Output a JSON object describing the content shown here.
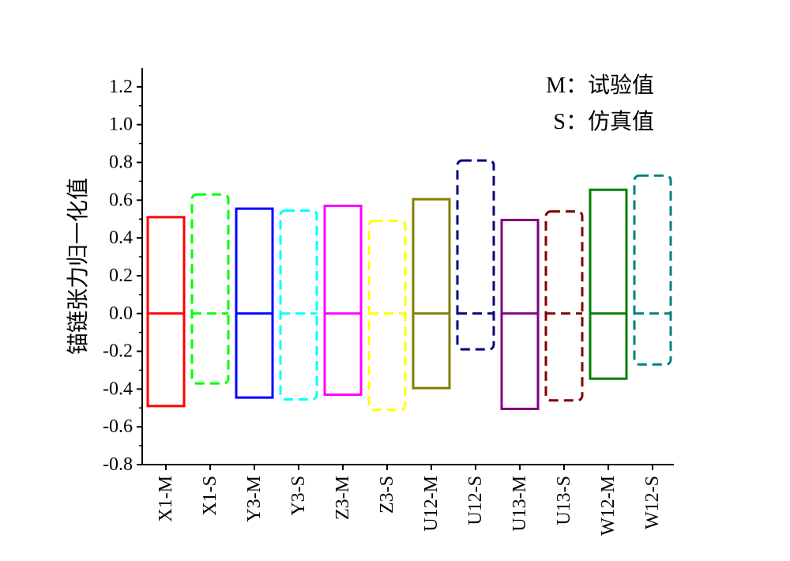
{
  "chart_data": {
    "type": "box",
    "ylabel": "锚链张力归一化值",
    "ylim": [
      -0.8,
      1.3
    ],
    "yticks": [
      "-0.8",
      "-0.6",
      "-0.4",
      "-0.2",
      "0.0",
      "0.2",
      "0.4",
      "0.6",
      "0.8",
      "1.0",
      "1.2"
    ],
    "ytick_values": [
      -0.8,
      -0.6,
      -0.4,
      -0.2,
      0.0,
      0.2,
      0.4,
      0.6,
      0.8,
      1.0,
      1.2
    ],
    "annotations": [
      "M：试验值",
      "S：仿真值"
    ],
    "legend_position": "top-right",
    "grid": false,
    "categories": [
      "X1-M",
      "X1-S",
      "Y3-M",
      "Y3-S",
      "Z3-M",
      "Z3-S",
      "U12-M",
      "U12-S",
      "U13-M",
      "U13-S",
      "W12-M",
      "W12-S"
    ],
    "boxes": [
      {
        "category": "X1-M",
        "max": 0.51,
        "mid": 0.0,
        "min": -0.49,
        "color": "#ff0000",
        "style": "solid"
      },
      {
        "category": "X1-S",
        "max": 0.63,
        "mid": 0.0,
        "min": -0.37,
        "color": "#00ff00",
        "style": "dashed"
      },
      {
        "category": "Y3-M",
        "max": 0.555,
        "mid": 0.0,
        "min": -0.445,
        "color": "#0000ff",
        "style": "solid"
      },
      {
        "category": "Y3-S",
        "max": 0.545,
        "mid": 0.0,
        "min": -0.455,
        "color": "#00ffff",
        "style": "dashed"
      },
      {
        "category": "Z3-M",
        "max": 0.57,
        "mid": 0.0,
        "min": -0.43,
        "color": "#ff00ff",
        "style": "solid"
      },
      {
        "category": "Z3-S",
        "max": 0.49,
        "mid": 0.0,
        "min": -0.51,
        "color": "#ffff00",
        "style": "dashed"
      },
      {
        "category": "U12-M",
        "max": 0.605,
        "mid": 0.0,
        "min": -0.395,
        "color": "#808000",
        "style": "solid"
      },
      {
        "category": "U12-S",
        "max": 0.81,
        "mid": 0.0,
        "min": -0.19,
        "color": "#000080",
        "style": "dashed"
      },
      {
        "category": "U13-M",
        "max": 0.495,
        "mid": 0.0,
        "min": -0.505,
        "color": "#800080",
        "style": "solid"
      },
      {
        "category": "U13-S",
        "max": 0.54,
        "mid": 0.0,
        "min": -0.46,
        "color": "#800000",
        "style": "dashed"
      },
      {
        "category": "W12-M",
        "max": 0.655,
        "mid": 0.0,
        "min": -0.345,
        "color": "#008000",
        "style": "solid"
      },
      {
        "category": "W12-S",
        "max": 0.73,
        "mid": 0.0,
        "min": -0.27,
        "color": "#008080",
        "style": "dashed"
      }
    ]
  }
}
